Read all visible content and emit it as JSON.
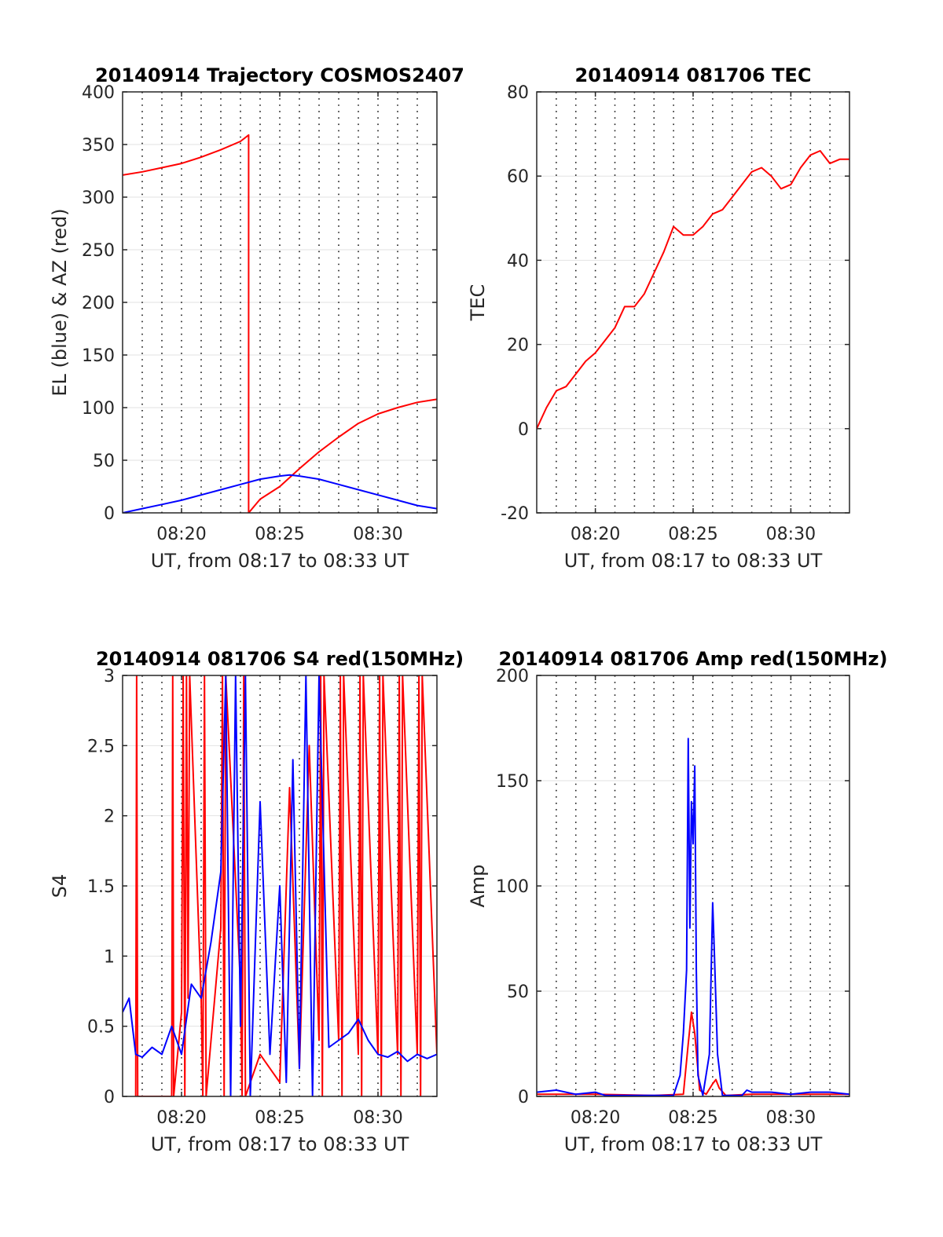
{
  "chart_data": [
    {
      "type": "line",
      "title": "20140914 Trajectory COSMOS2407",
      "xlabel": "UT, from 08:17 to 08:33 UT",
      "ylabel": "EL (blue) & AZ (red)",
      "xlim": [
        "08:17",
        "08:33"
      ],
      "ylim": [
        0,
        400
      ],
      "xticks": [
        "08:20",
        "08:25",
        "08:30"
      ],
      "yticks": [
        "0",
        "50",
        "100",
        "150",
        "200",
        "250",
        "300",
        "350",
        "400"
      ],
      "grid": "on",
      "series": [
        {
          "name": "AZ",
          "color": "#ff0000",
          "x": [
            "08:17",
            "08:18",
            "08:19",
            "08:20",
            "08:21",
            "08:22",
            "08:23",
            "08:23:25",
            "08:23:25",
            "08:24",
            "08:25",
            "08:26",
            "08:27",
            "08:28",
            "08:29",
            "08:30",
            "08:31",
            "08:32",
            "08:33"
          ],
          "y": [
            321,
            324,
            328,
            332,
            338,
            345,
            353,
            359,
            0,
            13,
            25,
            42,
            58,
            72,
            85,
            94,
            100,
            105,
            108
          ]
        },
        {
          "name": "EL",
          "color": "#0000ff",
          "x": [
            "08:17",
            "08:18",
            "08:19",
            "08:20",
            "08:21",
            "08:22",
            "08:23",
            "08:24",
            "08:25",
            "08:25:30",
            "08:26",
            "08:27",
            "08:28",
            "08:29",
            "08:30",
            "08:31",
            "08:32",
            "08:33"
          ],
          "y": [
            0,
            4,
            8,
            12,
            17,
            22,
            27,
            32,
            35,
            36,
            35,
            32,
            27,
            22,
            17,
            12,
            7,
            4
          ]
        }
      ]
    },
    {
      "type": "line",
      "title": "20140914 081706 TEC",
      "xlabel": "UT, from 08:17 to 08:33 UT",
      "ylabel": "TEC",
      "xlim": [
        "08:17",
        "08:33"
      ],
      "ylim": [
        -20,
        80
      ],
      "xticks": [
        "08:20",
        "08:25",
        "08:30"
      ],
      "yticks": [
        "-20",
        "0",
        "20",
        "40",
        "60",
        "80"
      ],
      "grid": "on",
      "series": [
        {
          "name": "TEC",
          "color": "#ff0000",
          "x": [
            "08:17",
            "08:17:30",
            "08:18",
            "08:18:30",
            "08:19",
            "08:19:30",
            "08:20",
            "08:20:30",
            "08:21",
            "08:21:30",
            "08:22",
            "08:22:30",
            "08:23",
            "08:23:30",
            "08:24",
            "08:24:30",
            "08:25",
            "08:25:30",
            "08:26",
            "08:26:30",
            "08:27",
            "08:27:30",
            "08:28",
            "08:28:30",
            "08:29",
            "08:29:30",
            "08:30",
            "08:30:30",
            "08:31",
            "08:31:30",
            "08:32",
            "08:32:30",
            "08:33"
          ],
          "y": [
            0,
            5,
            9,
            10,
            13,
            16,
            18,
            21,
            24,
            29,
            29,
            32,
            37,
            42,
            48,
            46,
            46,
            48,
            51,
            52,
            55,
            58,
            61,
            62,
            60,
            57,
            58,
            62,
            65,
            66,
            63,
            64,
            64
          ]
        }
      ]
    },
    {
      "type": "line",
      "title": "20140914 081706 S4 red(150MHz)",
      "xlabel": "UT, from 08:17 to 08:33 UT",
      "ylabel": "S4",
      "xlim": [
        "08:17",
        "08:33"
      ],
      "ylim": [
        0,
        3
      ],
      "xticks": [
        "08:20",
        "08:25",
        "08:30"
      ],
      "yticks": [
        "0",
        "0.5",
        "1",
        "1.5",
        "2",
        "2.5",
        "3"
      ],
      "grid": "on",
      "series": [
        {
          "name": "red",
          "color": "#ff0000",
          "x": [
            "08:17:40",
            "08:17:43",
            "08:17:46",
            "08:19:30",
            "08:19:33",
            "08:19:36",
            "08:20",
            "08:20:05",
            "08:20:10",
            "08:20:15",
            "08:20:20",
            "08:20:25",
            "08:21",
            "08:21:05",
            "08:21:10",
            "08:21:15",
            "08:22",
            "08:22:05",
            "08:22:10",
            "08:22:15",
            "08:23",
            "08:23:05",
            "08:23:10",
            "08:23:15",
            "08:24",
            "08:24:30",
            "08:25",
            "08:25:30",
            "08:26",
            "08:26:30",
            "08:27",
            "08:27:05",
            "08:27:10",
            "08:27:15",
            "08:28",
            "08:28:05",
            "08:28:10",
            "08:28:15",
            "08:29",
            "08:29:05",
            "08:29:10",
            "08:29:15",
            "08:30",
            "08:30:05",
            "08:30:10",
            "08:30:15",
            "08:31",
            "08:31:05",
            "08:31:10",
            "08:31:15",
            "08:32",
            "08:32:05",
            "08:32:10",
            "08:32:15",
            "08:33"
          ],
          "y": [
            0,
            3,
            0,
            0,
            3,
            0,
            0.6,
            3,
            0,
            3,
            0.7,
            3,
            0.7,
            0,
            3,
            0,
            1.2,
            3,
            0,
            3,
            0.8,
            0,
            3,
            0,
            0.3,
            0.2,
            0.1,
            2.2,
            0.2,
            2.5,
            0.4,
            3,
            0,
            3,
            0.4,
            3,
            0,
            3,
            0.3,
            3,
            0,
            3,
            0.3,
            3,
            0,
            3,
            0.3,
            3,
            0,
            3,
            0.3,
            3,
            0,
            3,
            0.3
          ]
        },
        {
          "name": "blue",
          "color": "#0000ff",
          "x": [
            "08:17",
            "08:17:20",
            "08:17:40",
            "08:18",
            "08:18:30",
            "08:19",
            "08:19:30",
            "08:20",
            "08:20:30",
            "08:21",
            "08:21:30",
            "08:22",
            "08:22:15",
            "08:22:30",
            "08:22:45",
            "08:23",
            "08:23:15",
            "08:23:30",
            "08:24",
            "08:24:30",
            "08:25",
            "08:25:20",
            "08:25:40",
            "08:26",
            "08:26:20",
            "08:26:40",
            "08:27",
            "08:27:30",
            "08:28",
            "08:28:30",
            "08:29",
            "08:29:30",
            "08:30",
            "08:30:30",
            "08:31",
            "08:31:30",
            "08:32",
            "08:32:30",
            "08:33"
          ],
          "y": [
            0.6,
            0.7,
            0.3,
            0.28,
            0.35,
            0.3,
            0.5,
            0.3,
            0.8,
            0.7,
            1.1,
            1.6,
            3,
            0,
            3,
            0.5,
            3,
            0,
            2.1,
            0.3,
            1.5,
            0.1,
            2.4,
            0.2,
            3,
            0,
            3,
            0.35,
            0.4,
            0.45,
            0.55,
            0.4,
            0.3,
            0.28,
            0.32,
            0.25,
            0.3,
            0.27,
            0.3
          ]
        }
      ]
    },
    {
      "type": "line",
      "title": "20140914 081706 Amp red(150MHz)",
      "xlabel": "UT, from 08:17 to 08:33 UT",
      "ylabel": "Amp",
      "xlim": [
        "08:17",
        "08:33"
      ],
      "ylim": [
        0,
        200
      ],
      "xticks": [
        "08:20",
        "08:25",
        "08:30"
      ],
      "yticks": [
        "0",
        "50",
        "100",
        "150",
        "200"
      ],
      "grid": "on",
      "series": [
        {
          "name": "red",
          "color": "#ff0000",
          "x": [
            "08:17",
            "08:20",
            "08:23",
            "08:24:30",
            "08:24:45",
            "08:24:55",
            "08:25:05",
            "08:25:20",
            "08:25:40",
            "08:26",
            "08:26:10",
            "08:26:20",
            "08:26:40",
            "08:28",
            "08:30",
            "08:33"
          ],
          "y": [
            1,
            1,
            0.5,
            1,
            25,
            40,
            30,
            3,
            1,
            6,
            8,
            4,
            0.5,
            1,
            1,
            1
          ]
        },
        {
          "name": "blue",
          "color": "#0000ff",
          "x": [
            "08:17",
            "08:18",
            "08:19",
            "08:20",
            "08:20:30",
            "08:21",
            "08:22",
            "08:23",
            "08:24",
            "08:24:20",
            "08:24:30",
            "08:24:40",
            "08:24:45",
            "08:24:50",
            "08:24:55",
            "08:25",
            "08:25:05",
            "08:25:10",
            "08:25:15",
            "08:25:30",
            "08:25:50",
            "08:26",
            "08:26:05",
            "08:26:15",
            "08:26:30",
            "08:27",
            "08:27:30",
            "08:27:45",
            "08:28",
            "08:29",
            "08:30",
            "08:31",
            "08:32",
            "08:33"
          ],
          "y": [
            2,
            3,
            1,
            2,
            0.5,
            0.5,
            0.5,
            0.5,
            0.5,
            10,
            30,
            60,
            170,
            80,
            140,
            120,
            157,
            60,
            10,
            0.5,
            20,
            92,
            70,
            20,
            0.5,
            0.5,
            0.5,
            3,
            2,
            2,
            1,
            2,
            2,
            1
          ]
        }
      ]
    }
  ]
}
